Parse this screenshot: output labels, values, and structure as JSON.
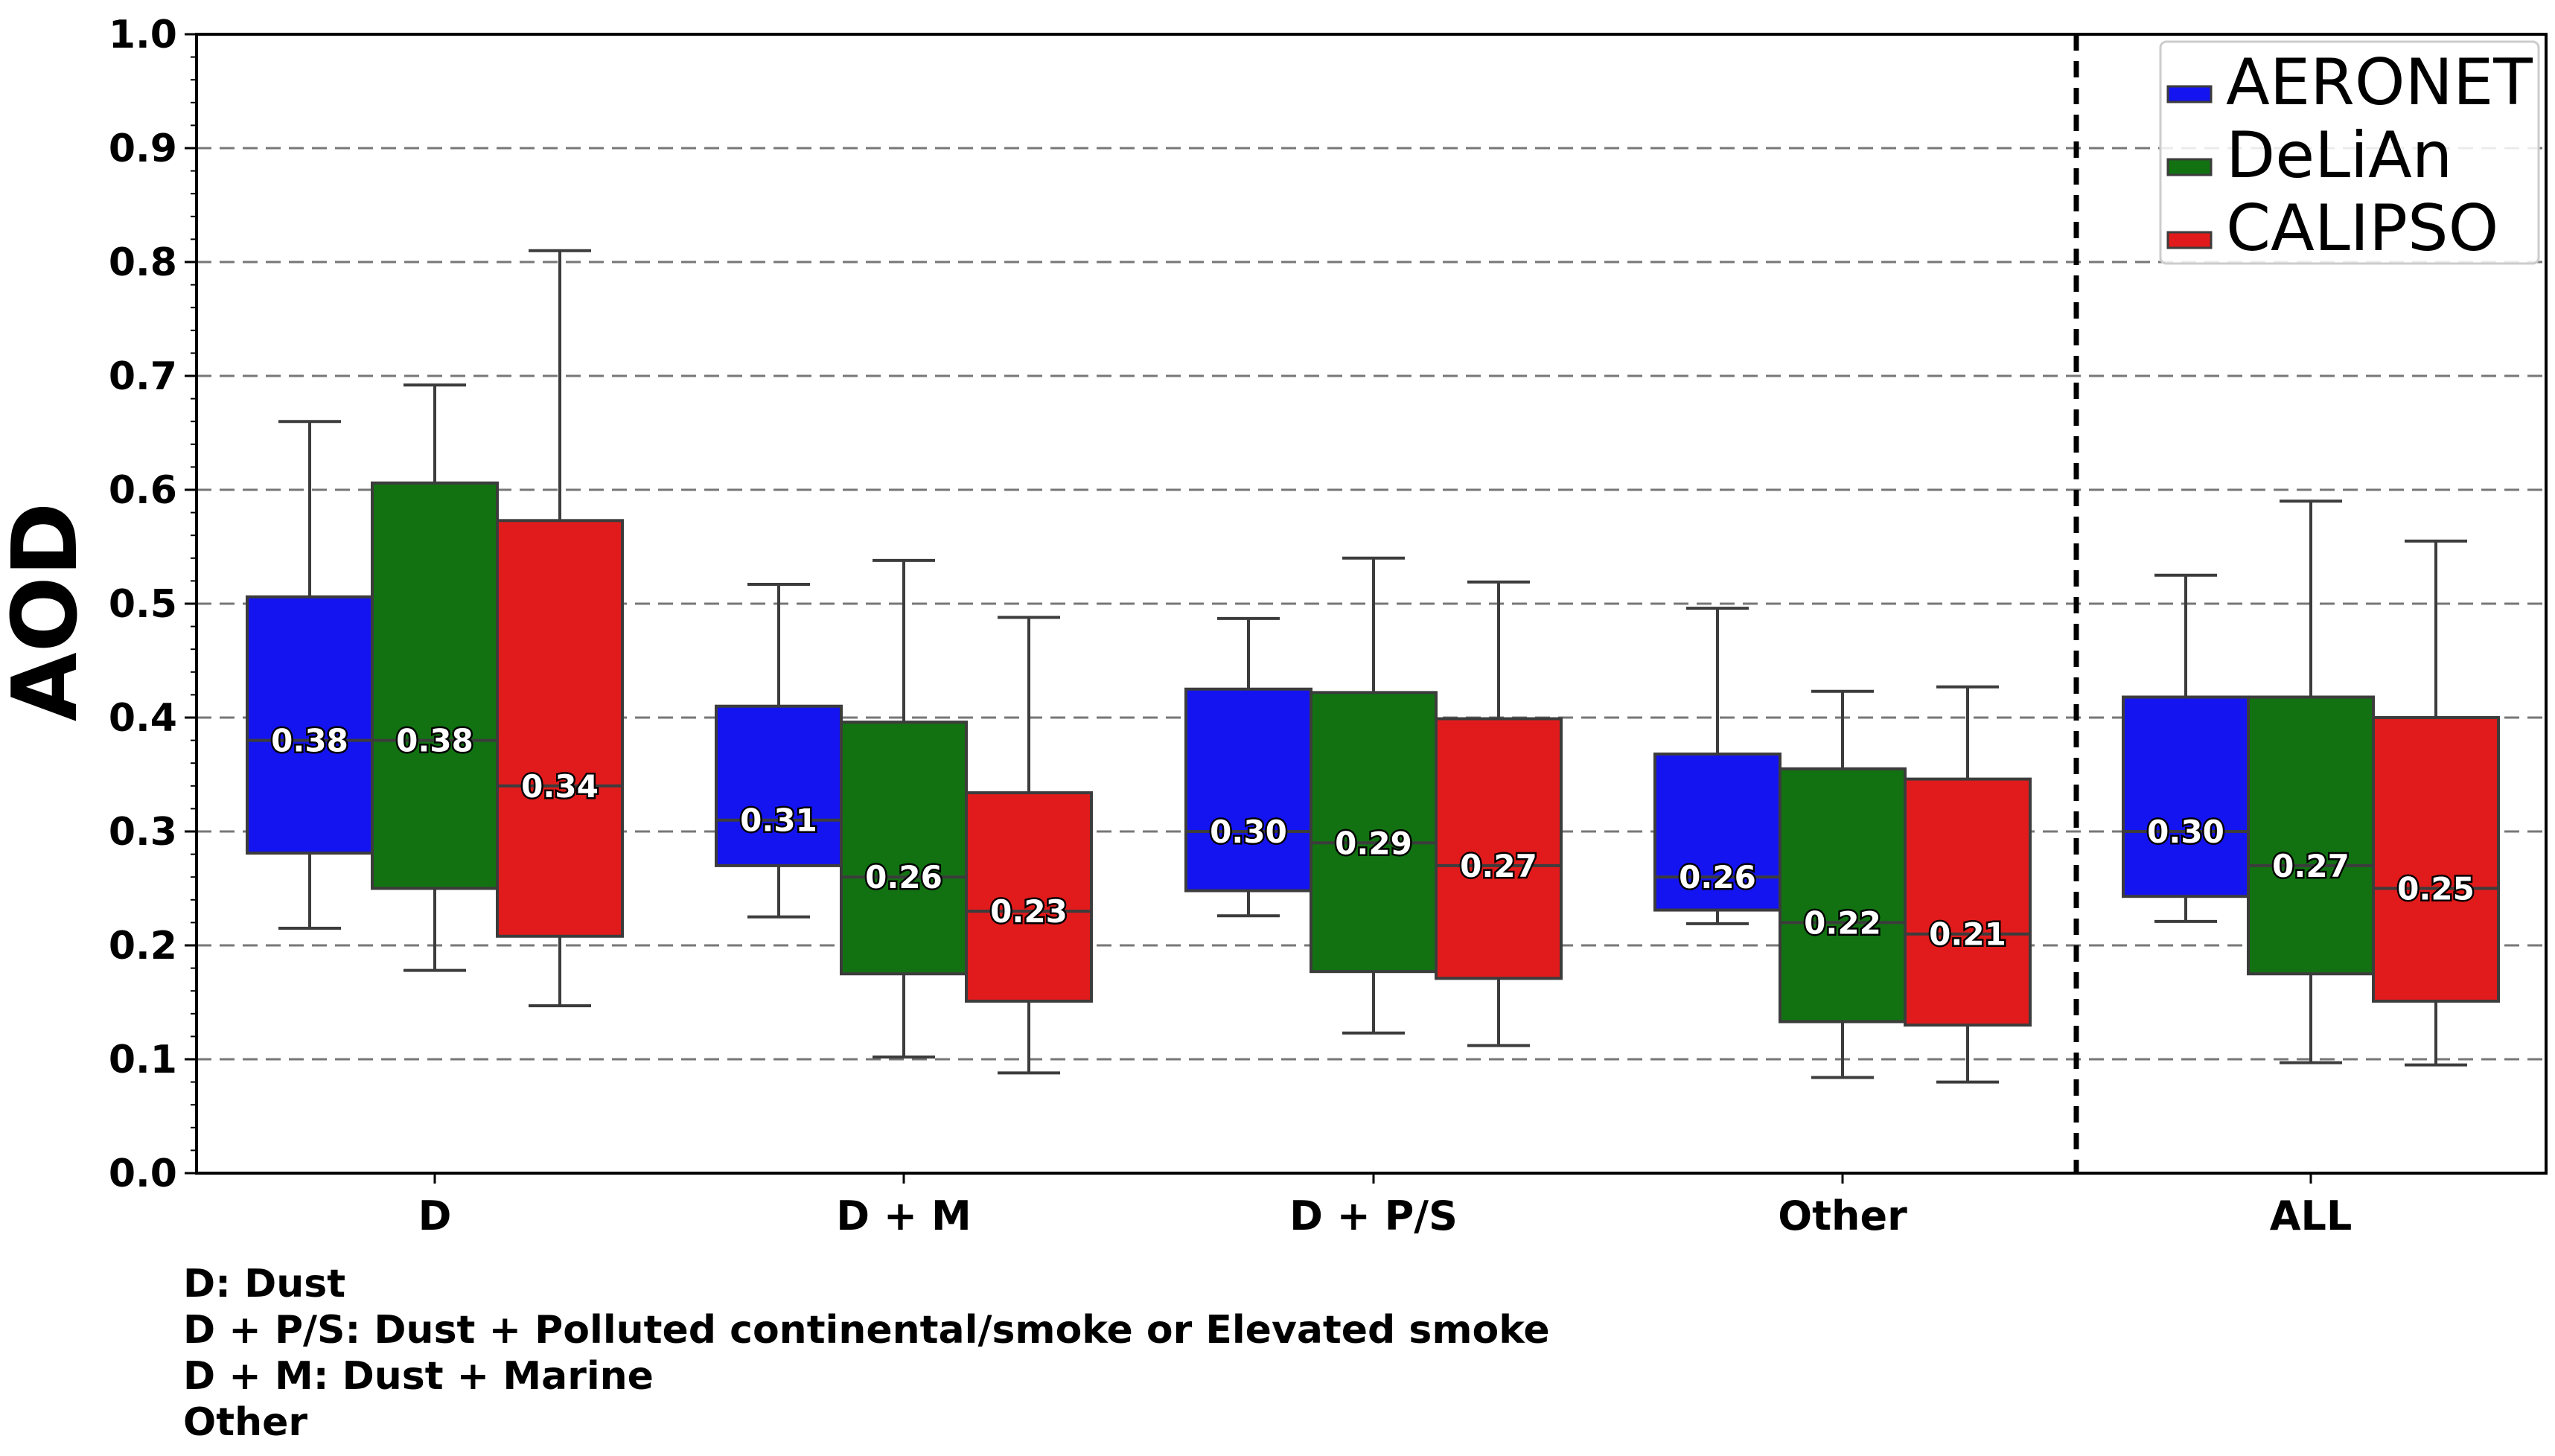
{
  "chart_data": {
    "type": "box",
    "ylabel": "AOD",
    "xlabel": "",
    "ylim": [
      0.0,
      1.0
    ],
    "yticks": [
      "0.0",
      "0.1",
      "0.2",
      "0.3",
      "0.4",
      "0.5",
      "0.6",
      "0.7",
      "0.8",
      "0.9",
      "1.0"
    ],
    "grid": "horizontal dashed",
    "categories": [
      "D",
      "D + M",
      "D + P/S",
      "Other",
      "ALL"
    ],
    "separator_before_category": "ALL",
    "legend_position": "top-right",
    "series": [
      {
        "name": "AERONET",
        "color": "#1414f0",
        "boxes": [
          {
            "whisker_low": 0.215,
            "q1": 0.281,
            "median": 0.38,
            "q3": 0.506,
            "whisker_high": 0.66,
            "label": "0.38"
          },
          {
            "whisker_low": 0.225,
            "q1": 0.27,
            "median": 0.31,
            "q3": 0.41,
            "whisker_high": 0.517,
            "label": "0.31"
          },
          {
            "whisker_low": 0.226,
            "q1": 0.248,
            "median": 0.3,
            "q3": 0.425,
            "whisker_high": 0.487,
            "label": "0.30"
          },
          {
            "whisker_low": 0.219,
            "q1": 0.231,
            "median": 0.26,
            "q3": 0.368,
            "whisker_high": 0.496,
            "label": "0.26"
          },
          {
            "whisker_low": 0.221,
            "q1": 0.243,
            "median": 0.3,
            "q3": 0.418,
            "whisker_high": 0.525,
            "label": "0.30"
          }
        ]
      },
      {
        "name": "DeLiAn",
        "color": "#127212",
        "boxes": [
          {
            "whisker_low": 0.178,
            "q1": 0.25,
            "median": 0.38,
            "q3": 0.606,
            "whisker_high": 0.692,
            "label": "0.38"
          },
          {
            "whisker_low": 0.102,
            "q1": 0.175,
            "median": 0.26,
            "q3": 0.396,
            "whisker_high": 0.538,
            "label": "0.26"
          },
          {
            "whisker_low": 0.123,
            "q1": 0.177,
            "median": 0.29,
            "q3": 0.422,
            "whisker_high": 0.54,
            "label": "0.29"
          },
          {
            "whisker_low": 0.084,
            "q1": 0.133,
            "median": 0.22,
            "q3": 0.355,
            "whisker_high": 0.423,
            "label": "0.22"
          },
          {
            "whisker_low": 0.097,
            "q1": 0.175,
            "median": 0.27,
            "q3": 0.418,
            "whisker_high": 0.59,
            "label": "0.27"
          }
        ]
      },
      {
        "name": "CALIPSO",
        "color": "#e11b1b",
        "boxes": [
          {
            "whisker_low": 0.147,
            "q1": 0.208,
            "median": 0.34,
            "q3": 0.573,
            "whisker_high": 0.81,
            "label": "0.34"
          },
          {
            "whisker_low": 0.088,
            "q1": 0.151,
            "median": 0.23,
            "q3": 0.334,
            "whisker_high": 0.488,
            "label": "0.23"
          },
          {
            "whisker_low": 0.112,
            "q1": 0.171,
            "median": 0.27,
            "q3": 0.399,
            "whisker_high": 0.519,
            "label": "0.27"
          },
          {
            "whisker_low": 0.08,
            "q1": 0.13,
            "median": 0.21,
            "q3": 0.346,
            "whisker_high": 0.427,
            "label": "0.21"
          },
          {
            "whisker_low": 0.095,
            "q1": 0.151,
            "median": 0.25,
            "q3": 0.4,
            "whisker_high": 0.555,
            "label": "0.25"
          }
        ]
      }
    ]
  },
  "footnotes": [
    "D: Dust",
    "D + P/S: Dust + Polluted continental/smoke or Elevated smoke",
    "D + M: Dust + Marine",
    "Other"
  ]
}
